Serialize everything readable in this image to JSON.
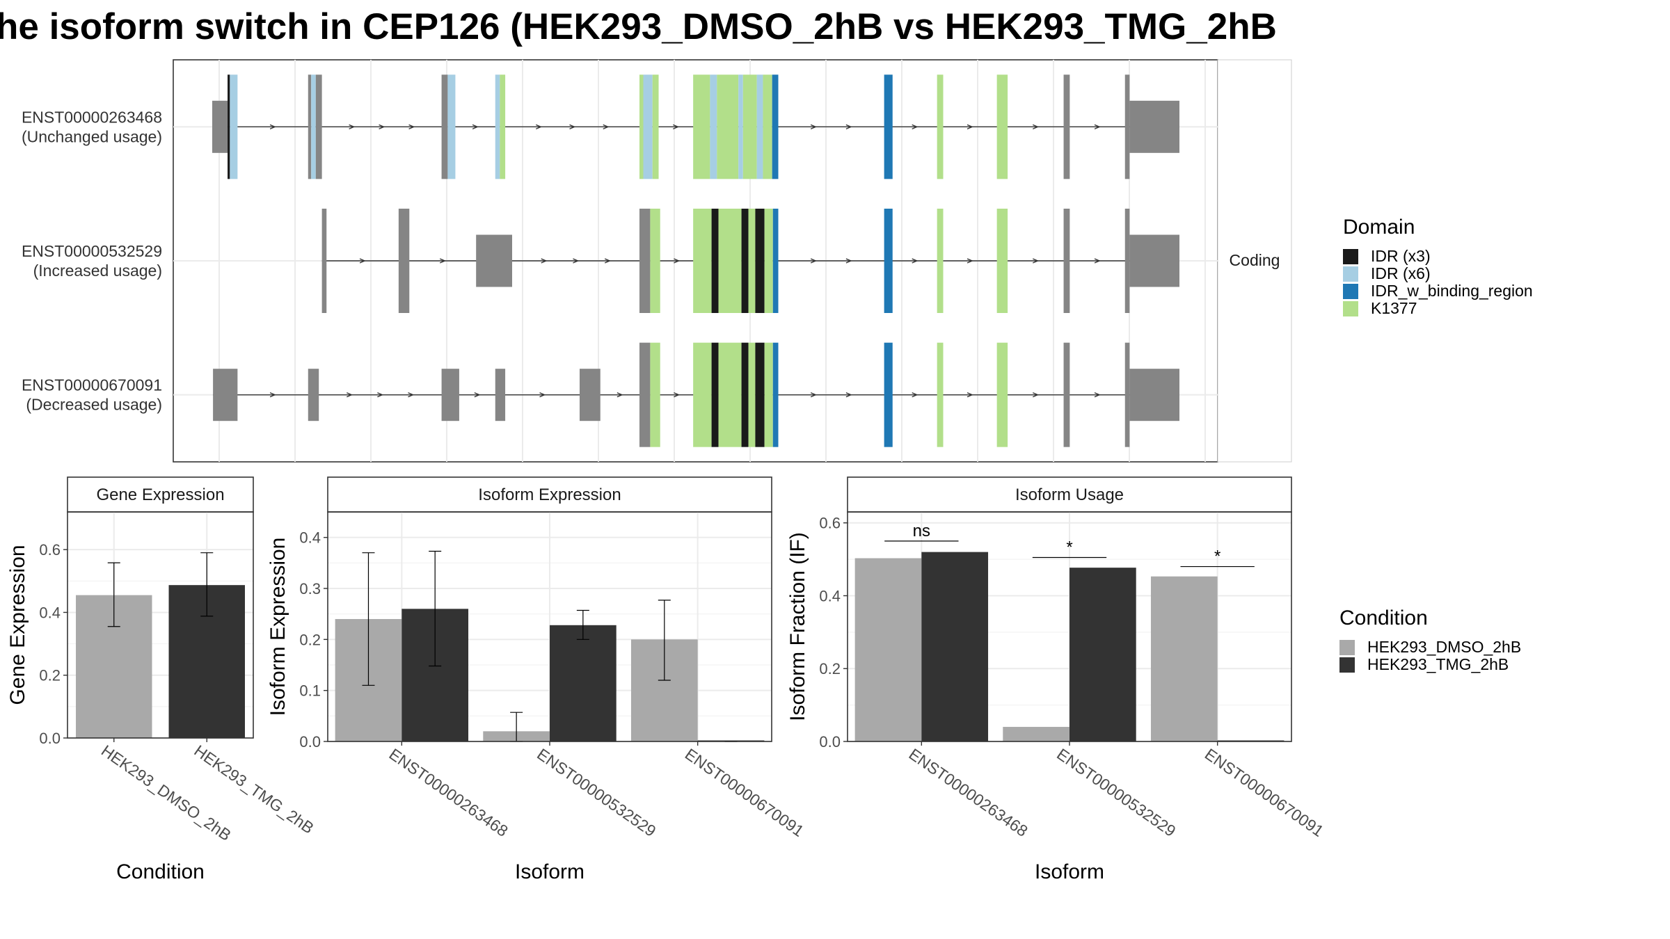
{
  "title": "he isoform switch in CEP126 (HEK293_DMSO_2hB vs HEK293_TMG_2hB",
  "colors": {
    "dmso": "#a9a9a9",
    "tmg": "#333333",
    "exon": "#858585",
    "idr3": "#1a1a1a",
    "idr6": "#a6cee3",
    "idr_binding": "#1f78b4",
    "k1377": "#b2df8a",
    "grid": "#ebebeb",
    "strip": "#ffffff",
    "frame": "#333333"
  },
  "structure": {
    "facet_label": "Coding",
    "isoforms": [
      {
        "id": "ENST00000263468",
        "usage": "(Unchanged usage)",
        "features": [
          {
            "s": 1,
            "e": 21,
            "k": "exon",
            "h": "small"
          },
          {
            "s": 21,
            "e": 24,
            "k": "idr3",
            "h": "tall"
          },
          {
            "s": 24,
            "e": 34,
            "k": "idr6",
            "h": "tall"
          },
          {
            "s": 126,
            "e": 130,
            "k": "exon",
            "h": "tall"
          },
          {
            "s": 130,
            "e": 136,
            "k": "idr6",
            "h": "tall"
          },
          {
            "s": 136,
            "e": 144,
            "k": "exon",
            "h": "tall"
          },
          {
            "s": 300,
            "e": 308,
            "k": "exon",
            "h": "tall"
          },
          {
            "s": 308,
            "e": 318,
            "k": "idr6",
            "h": "tall"
          },
          {
            "s": 370,
            "e": 376,
            "k": "idr6",
            "h": "tall"
          },
          {
            "s": 376,
            "e": 383,
            "k": "k1377",
            "h": "tall"
          },
          {
            "s": 558,
            "e": 563,
            "k": "k1377",
            "h": "tall"
          },
          {
            "s": 563,
            "e": 575,
            "k": "idr6",
            "h": "tall"
          },
          {
            "s": 575,
            "e": 583,
            "k": "k1377",
            "h": "tall"
          },
          {
            "s": 628,
            "e": 650,
            "k": "k1377",
            "h": "tall"
          },
          {
            "s": 650,
            "e": 659,
            "k": "idr6",
            "h": "tall"
          },
          {
            "s": 659,
            "e": 687,
            "k": "k1377",
            "h": "tall"
          },
          {
            "s": 687,
            "e": 693,
            "k": "idr6",
            "h": "tall"
          },
          {
            "s": 693,
            "e": 711,
            "k": "k1377",
            "h": "tall"
          },
          {
            "s": 711,
            "e": 719,
            "k": "idr6",
            "h": "tall"
          },
          {
            "s": 719,
            "e": 731,
            "k": "k1377",
            "h": "tall"
          },
          {
            "s": 731,
            "e": 739,
            "k": "idr_binding",
            "h": "tall"
          },
          {
            "s": 877,
            "e": 888,
            "k": "idr_binding",
            "h": "tall"
          },
          {
            "s": 946,
            "e": 954,
            "k": "k1377",
            "h": "tall"
          },
          {
            "s": 1024,
            "e": 1038,
            "k": "k1377",
            "h": "tall"
          },
          {
            "s": 1111,
            "e": 1119,
            "k": "exon",
            "h": "tall"
          },
          {
            "s": 1191,
            "e": 1197,
            "k": "exon",
            "h": "tall"
          },
          {
            "s": 1197,
            "e": 1262,
            "k": "exon",
            "h": "small"
          }
        ]
      },
      {
        "id": "ENST00000532529",
        "usage": "(Increased usage)",
        "features": [
          {
            "s": 144,
            "e": 150,
            "k": "exon",
            "h": "tall"
          },
          {
            "s": 244,
            "e": 258,
            "k": "exon",
            "h": "tall"
          },
          {
            "s": 345,
            "e": 392,
            "k": "exon",
            "h": "small"
          },
          {
            "s": 558,
            "e": 572,
            "k": "exon",
            "h": "tall"
          },
          {
            "s": 572,
            "e": 585,
            "k": "k1377",
            "h": "tall"
          },
          {
            "s": 628,
            "e": 652,
            "k": "k1377",
            "h": "tall"
          },
          {
            "s": 652,
            "e": 661,
            "k": "idr3",
            "h": "tall"
          },
          {
            "s": 661,
            "e": 691,
            "k": "k1377",
            "h": "tall"
          },
          {
            "s": 691,
            "e": 700,
            "k": "idr3",
            "h": "tall"
          },
          {
            "s": 700,
            "e": 709,
            "k": "k1377",
            "h": "tall"
          },
          {
            "s": 709,
            "e": 721,
            "k": "idr3",
            "h": "tall"
          },
          {
            "s": 721,
            "e": 732,
            "k": "k1377",
            "h": "tall"
          },
          {
            "s": 732,
            "e": 739,
            "k": "idr_binding",
            "h": "tall"
          },
          {
            "s": 877,
            "e": 888,
            "k": "idr_binding",
            "h": "tall"
          },
          {
            "s": 946,
            "e": 954,
            "k": "k1377",
            "h": "tall"
          },
          {
            "s": 1024,
            "e": 1038,
            "k": "k1377",
            "h": "tall"
          },
          {
            "s": 1111,
            "e": 1119,
            "k": "exon",
            "h": "tall"
          },
          {
            "s": 1191,
            "e": 1197,
            "k": "exon",
            "h": "tall"
          },
          {
            "s": 1197,
            "e": 1262,
            "k": "exon",
            "h": "small"
          }
        ]
      },
      {
        "id": "ENST00000670091",
        "usage": "(Decreased usage)",
        "features": [
          {
            "s": 2,
            "e": 34,
            "k": "exon",
            "h": "small"
          },
          {
            "s": 126,
            "e": 140,
            "k": "exon",
            "h": "small"
          },
          {
            "s": 300,
            "e": 323,
            "k": "exon",
            "h": "small"
          },
          {
            "s": 370,
            "e": 383,
            "k": "exon",
            "h": "small"
          },
          {
            "s": 480,
            "e": 507,
            "k": "exon",
            "h": "small"
          },
          {
            "s": 558,
            "e": 572,
            "k": "exon",
            "h": "tall"
          },
          {
            "s": 572,
            "e": 585,
            "k": "k1377",
            "h": "tall"
          },
          {
            "s": 628,
            "e": 652,
            "k": "k1377",
            "h": "tall"
          },
          {
            "s": 652,
            "e": 661,
            "k": "idr3",
            "h": "tall"
          },
          {
            "s": 661,
            "e": 691,
            "k": "k1377",
            "h": "tall"
          },
          {
            "s": 691,
            "e": 700,
            "k": "idr3",
            "h": "tall"
          },
          {
            "s": 700,
            "e": 709,
            "k": "k1377",
            "h": "tall"
          },
          {
            "s": 709,
            "e": 721,
            "k": "idr3",
            "h": "tall"
          },
          {
            "s": 721,
            "e": 732,
            "k": "k1377",
            "h": "tall"
          },
          {
            "s": 732,
            "e": 739,
            "k": "idr_binding",
            "h": "tall"
          },
          {
            "s": 877,
            "e": 888,
            "k": "idr_binding",
            "h": "tall"
          },
          {
            "s": 946,
            "e": 954,
            "k": "k1377",
            "h": "tall"
          },
          {
            "s": 1024,
            "e": 1038,
            "k": "k1377",
            "h": "tall"
          },
          {
            "s": 1111,
            "e": 1119,
            "k": "exon",
            "h": "tall"
          },
          {
            "s": 1191,
            "e": 1197,
            "k": "exon",
            "h": "tall"
          },
          {
            "s": 1197,
            "e": 1262,
            "k": "exon",
            "h": "small"
          }
        ]
      }
    ]
  },
  "legend_domain": {
    "title": "Domain",
    "items": [
      {
        "label": "IDR (x3)",
        "color_key": "idr3"
      },
      {
        "label": "IDR (x6)",
        "color_key": "idr6"
      },
      {
        "label": "IDR_w_binding_region",
        "color_key": "idr_binding"
      },
      {
        "label": "K1377",
        "color_key": "k1377"
      }
    ]
  },
  "legend_condition": {
    "title": "Condition",
    "items": [
      {
        "label": "HEK293_DMSO_2hB",
        "color_key": "dmso"
      },
      {
        "label": "HEK293_TMG_2hB",
        "color_key": "tmg"
      }
    ]
  },
  "chart_data": [
    {
      "type": "bar",
      "panel": "gene",
      "title": "Gene Expression",
      "xlabel": "Condition",
      "ylabel": "Gene Expression",
      "ylim": [
        0,
        0.72
      ],
      "yticks": [
        0.0,
        0.2,
        0.4,
        0.6
      ],
      "categories": [
        "HEK293_DMSO_2hB",
        "HEK293_TMG_2hB"
      ],
      "series": [
        {
          "name": "HEK293_DMSO_2hB",
          "color_key": "dmso",
          "values": [
            0.455,
            null
          ],
          "err_low": [
            0.355,
            null
          ],
          "err_high": [
            0.558,
            null
          ]
        },
        {
          "name": "HEK293_TMG_2hB",
          "color_key": "tmg",
          "values": [
            null,
            0.487
          ],
          "err_low": [
            null,
            0.388
          ],
          "err_high": [
            null,
            0.59
          ]
        }
      ]
    },
    {
      "type": "bar",
      "panel": "iso_expr",
      "title": "Isoform Expression",
      "xlabel": "Isoform",
      "ylabel": "Isoform Expression",
      "ylim": [
        0,
        0.45
      ],
      "yticks": [
        0.0,
        0.1,
        0.2,
        0.3,
        0.4
      ],
      "categories": [
        "ENST00000263468",
        "ENST00000532529",
        "ENST00000670091"
      ],
      "series": [
        {
          "name": "HEK293_DMSO_2hB",
          "color_key": "dmso",
          "values": [
            0.24,
            0.02,
            0.2
          ],
          "err_low": [
            0.11,
            0.0,
            0.12
          ],
          "err_high": [
            0.37,
            0.057,
            0.277
          ]
        },
        {
          "name": "HEK293_TMG_2hB",
          "color_key": "tmg",
          "values": [
            0.26,
            0.228,
            0.0
          ],
          "err_low": [
            0.148,
            0.2,
            0.0
          ],
          "err_high": [
            0.373,
            0.257,
            0.0
          ]
        }
      ]
    },
    {
      "type": "bar",
      "panel": "iso_usage",
      "title": "Isoform Usage",
      "xlabel": "Isoform",
      "ylabel": "Isoform Fraction (IF)",
      "ylim": [
        0,
        0.63
      ],
      "yticks": [
        0.0,
        0.2,
        0.4,
        0.6
      ],
      "categories": [
        "ENST00000263468",
        "ENST00000532529",
        "ENST00000670091"
      ],
      "series": [
        {
          "name": "HEK293_DMSO_2hB",
          "color_key": "dmso",
          "values": [
            0.503,
            0.04,
            0.453
          ]
        },
        {
          "name": "HEK293_TMG_2hB",
          "color_key": "tmg",
          "values": [
            0.52,
            0.477,
            0.0
          ]
        }
      ],
      "significance": [
        {
          "category": 0,
          "label": "ns",
          "y": 0.55
        },
        {
          "category": 1,
          "label": "*",
          "y": 0.505
        },
        {
          "category": 2,
          "label": "*",
          "y": 0.48
        }
      ]
    }
  ]
}
